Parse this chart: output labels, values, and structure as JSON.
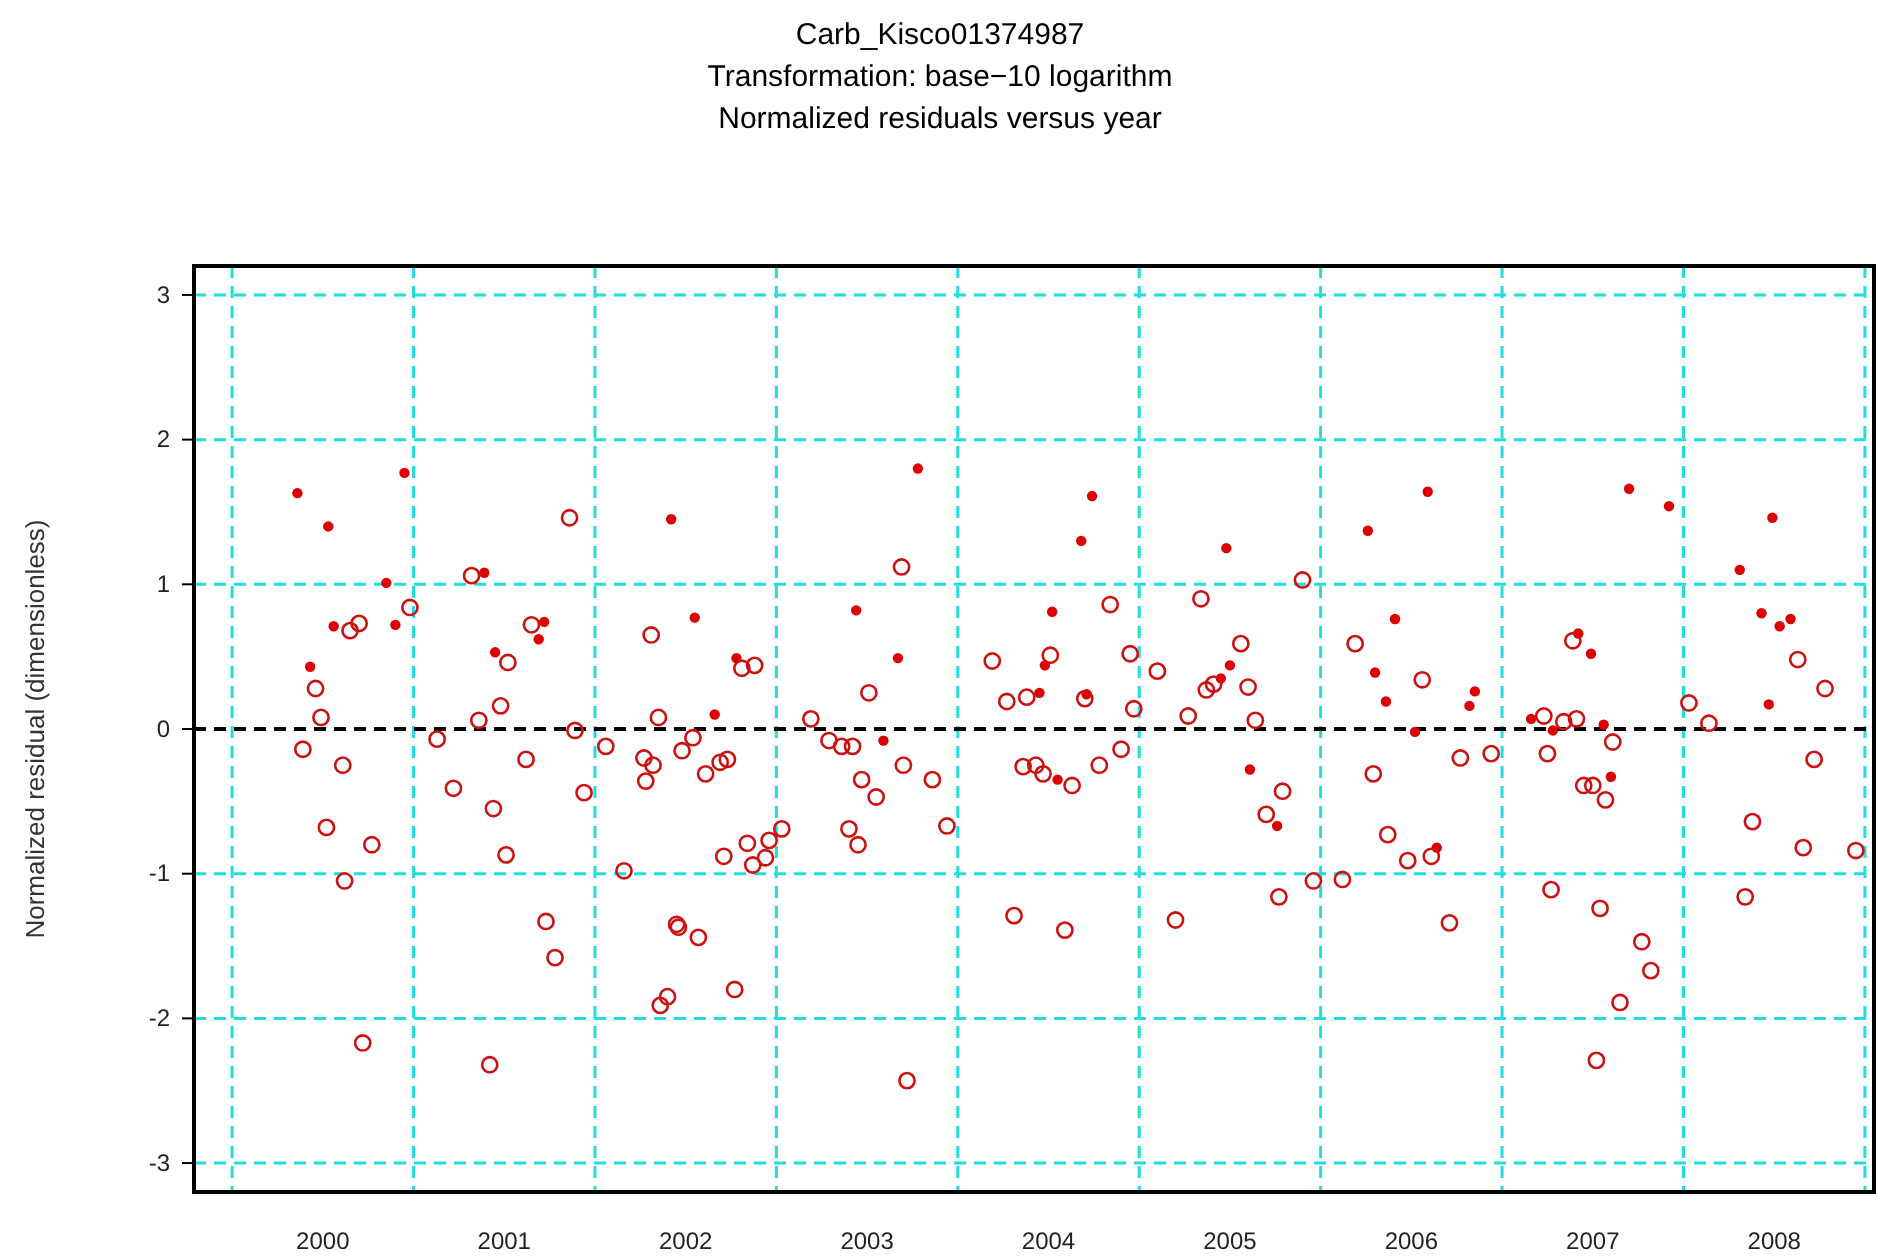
{
  "chart_data": {
    "type": "scatter",
    "title": "Carb_Kisco01374987",
    "subtitle": "Transformation: base−10 logarithm\nNormalized residuals versus year",
    "ylabel": "Normalized residual (dimensionless)",
    "xlim": [
      1999.79,
      2009.05
    ],
    "ylim": [
      -3.2,
      3.2
    ],
    "xticks": [
      {
        "value": 2000,
        "label": null
      },
      {
        "value": 2000.5,
        "label": "2000"
      },
      {
        "value": 2001,
        "label": null
      },
      {
        "value": 2001.5,
        "label": "2001"
      },
      {
        "value": 2002,
        "label": null
      },
      {
        "value": 2002.5,
        "label": "2002"
      },
      {
        "value": 2003,
        "label": null
      },
      {
        "value": 2003.5,
        "label": "2003"
      },
      {
        "value": 2004,
        "label": null
      },
      {
        "value": 2004.5,
        "label": "2004"
      },
      {
        "value": 2005,
        "label": null
      },
      {
        "value": 2005.5,
        "label": "2005"
      },
      {
        "value": 2006,
        "label": null
      },
      {
        "value": 2006.5,
        "label": "2006"
      },
      {
        "value": 2007,
        "label": null
      },
      {
        "value": 2007.5,
        "label": "2007"
      },
      {
        "value": 2008,
        "label": null
      },
      {
        "value": 2008.5,
        "label": "2008"
      },
      {
        "value": 2009,
        "label": null
      }
    ],
    "yticks": [
      -3,
      -2,
      -1,
      0,
      1,
      2,
      3
    ],
    "grid": true,
    "marker": "circle",
    "ref_lines": [
      {
        "axis": "y",
        "value": 0,
        "color": "#000000",
        "line_style": "dashed"
      }
    ],
    "series": [
      {
        "color": "#dd0000",
        "x": [
          2000.36,
          2000.95,
          2000.53,
          2000.85,
          2001.39,
          2000.56,
          2000.9,
          2001.72,
          2001.69,
          2001.45,
          2000.43,
          2002.42,
          2003.78,
          2002.55,
          2003.44,
          2002.78,
          2003.67,
          2002.66,
          2003.59,
          2004.74,
          2004.68,
          2005.48,
          2006.26,
          2006.59,
          2004.52,
          2006.41,
          2004.48,
          2004.45,
          2004.71,
          2005.5,
          2005.45,
          2006.3,
          2006.36,
          2006.52,
          2004.55,
          2005.61,
          2005.76,
          2006.64,
          2007.7,
          2007.92,
          2008.49,
          2008.31,
          2008.43,
          2008.53,
          2008.59,
          2008.47,
          2007.42,
          2007.49,
          2006.85,
          2006.82,
          2007.16,
          2007.28,
          2007.56,
          2007.6
        ],
        "values": [
          1.63,
          1.77,
          1.4,
          1.01,
          1.08,
          0.71,
          0.72,
          0.74,
          0.62,
          0.53,
          0.43,
          1.45,
          1.8,
          0.77,
          0.82,
          0.49,
          0.49,
          0.1,
          -0.08,
          1.61,
          1.3,
          1.25,
          1.37,
          1.64,
          0.81,
          0.76,
          0.44,
          0.25,
          0.24,
          0.44,
          0.35,
          0.39,
          0.19,
          -0.02,
          -0.35,
          -0.28,
          -0.67,
          -0.82,
          1.66,
          1.54,
          1.46,
          1.1,
          0.8,
          0.71,
          0.76,
          0.17,
          0.66,
          0.52,
          0.26,
          0.16,
          0.07,
          -0.01,
          0.03,
          -0.33
        ]
      },
      {
        "color": "#cc1111",
        "x": [
          2001.86,
          2001.32,
          2000.98,
          2000.7,
          2000.65,
          2001.65,
          2001.52,
          2000.46,
          2000.49,
          2001.48,
          2001.36,
          2001.89,
          2000.39,
          2001.13,
          2002.06,
          2000.61,
          2001.62,
          2001.22,
          2001.94,
          2001.44,
          2000.52,
          2000.77,
          2001.51,
          2000.62,
          2001.73,
          2001.78,
          2000.72,
          2001.42,
          2003.69,
          2002.31,
          2002.81,
          2002.88,
          2003.51,
          2004.19,
          2004.27,
          2004.38,
          2002.35,
          2003.19,
          2002.54,
          2002.48,
          2002.27,
          2002.32,
          2002.28,
          2002.61,
          2002.69,
          2002.73,
          2003.29,
          2003.36,
          2003.42,
          2003.7,
          2003.47,
          2003.55,
          2003.86,
          2004.36,
          2003.03,
          2002.96,
          2002.84,
          2002.87,
          2002.94,
          2002.71,
          2003.4,
          2003.45,
          2003.94,
          2002.16,
          2002.45,
          2002.46,
          2002.57,
          2004.31,
          2002.36,
          2002.4,
          2002.77,
          2003.72,
          2005.9,
          2004.84,
          2005.34,
          2004.51,
          2004.95,
          2005.1,
          2005.56,
          2005.37,
          2005.41,
          2005.6,
          2006.19,
          2006.56,
          2004.7,
          2004.97,
          2005.27,
          2005.64,
          2004.43,
          2004.47,
          2004.63,
          2004.78,
          2004.9,
          2005.79,
          2005.7,
          2006.29,
          2006.37,
          2006.48,
          2006.61,
          2005.77,
          2005.96,
          2006.12,
          2004.59,
          2005.2,
          2007.39,
          2008.03,
          2008.14,
          2008.63,
          2008.78,
          2007.23,
          2007.34,
          2007.41,
          2006.77,
          2006.94,
          2007.25,
          2007.61,
          2007.45,
          2007.5,
          2007.57,
          2008.38,
          2008.72,
          2008.66,
          2008.95,
          2006.71,
          2007.27,
          2007.54,
          2008.34,
          2007.77,
          2007.82,
          2007.65,
          2007.52
        ],
        "values": [
          1.46,
          1.06,
          0.84,
          0.73,
          0.68,
          0.72,
          0.46,
          0.28,
          0.08,
          0.16,
          0.06,
          -0.01,
          -0.14,
          -0.07,
          -0.12,
          -0.25,
          -0.21,
          -0.41,
          -0.44,
          -0.55,
          -0.68,
          -0.8,
          -0.87,
          -1.05,
          -1.33,
          -1.58,
          -2.17,
          -2.32,
          1.12,
          0.65,
          0.42,
          0.44,
          0.25,
          0.47,
          0.19,
          0.22,
          0.08,
          0.07,
          -0.06,
          -0.15,
          -0.2,
          -0.25,
          -0.36,
          -0.31,
          -0.23,
          -0.21,
          -0.08,
          -0.12,
          -0.12,
          -0.25,
          -0.35,
          -0.47,
          -0.35,
          -0.26,
          -0.69,
          -0.77,
          -0.79,
          -0.94,
          -0.89,
          -0.88,
          -0.69,
          -0.8,
          -0.67,
          -0.98,
          -1.35,
          -1.37,
          -1.44,
          -1.29,
          -1.91,
          -1.85,
          -1.8,
          -2.43,
          1.03,
          0.86,
          0.9,
          0.51,
          0.52,
          0.4,
          0.59,
          0.27,
          0.31,
          0.29,
          0.59,
          0.34,
          0.21,
          0.14,
          0.09,
          0.06,
          -0.25,
          -0.31,
          -0.39,
          -0.25,
          -0.14,
          -0.43,
          -0.59,
          -0.31,
          -0.73,
          -0.91,
          -0.88,
          -1.16,
          -1.05,
          -1.04,
          -1.39,
          -1.32,
          0.61,
          0.18,
          0.04,
          0.48,
          0.28,
          0.09,
          0.05,
          0.07,
          -0.2,
          -0.17,
          -0.17,
          -0.09,
          -0.39,
          -0.39,
          -0.49,
          -0.64,
          -0.21,
          -0.82,
          -0.84,
          -1.34,
          -1.11,
          -1.24,
          -1.16,
          -1.47,
          -1.67,
          -1.89,
          -2.29
        ]
      }
    ]
  }
}
